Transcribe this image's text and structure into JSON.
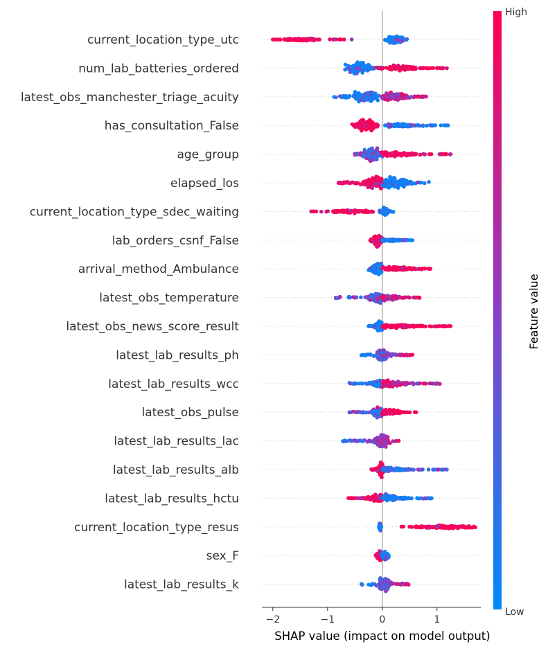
{
  "chart_data": {
    "type": "scatter",
    "subtype": "shap-beeswarm",
    "title": "",
    "xlabel": "SHAP value (impact on model output)",
    "xlim": [
      -2.2,
      1.8
    ],
    "xticks": [
      {
        "v": -2,
        "label": "−2"
      },
      {
        "v": -1,
        "label": "−1"
      },
      {
        "v": 0,
        "label": "0"
      },
      {
        "v": 1,
        "label": "1"
      }
    ],
    "grid": false,
    "colorbar": {
      "title": "Feature value",
      "high_label": "High",
      "low_label": "Low",
      "low_color": "#008bfb",
      "mid_color": "#8a3fc6",
      "high_color": "#ff0051"
    },
    "features": [
      {
        "name": "current_location_type_utc",
        "groups": [
          {
            "min": -2.0,
            "max": -0.56,
            "core": [
              -1.75,
              -1.25
            ],
            "peak": -1.45,
            "width": 0.2,
            "color": "high",
            "n": 110
          },
          {
            "min": 0.05,
            "max": 0.45,
            "core": [
              0.12,
              0.35
            ],
            "peak": 0.22,
            "width": 0.55,
            "color": "low",
            "n": 130
          }
        ]
      },
      {
        "name": "num_lab_batteries_ordered",
        "groups": [
          {
            "min": -0.68,
            "max": 0.0,
            "core": [
              -0.6,
              -0.2
            ],
            "peak": -0.48,
            "width": 0.75,
            "color": "low",
            "n": 110
          },
          {
            "min": -0.1,
            "max": 1.18,
            "core": [
              0.1,
              0.6
            ],
            "peak": 0.3,
            "width": 0.35,
            "color": "high",
            "n": 130
          }
        ]
      },
      {
        "name": "latest_obs_manchester_triage_acuity",
        "groups": [
          {
            "min": -0.88,
            "max": 0.05,
            "core": [
              -0.5,
              -0.1
            ],
            "peak": -0.3,
            "width": 0.85,
            "color": "low",
            "n": 130
          },
          {
            "min": 0.0,
            "max": 0.8,
            "core": [
              0.05,
              0.45
            ],
            "peak": 0.2,
            "width": 0.5,
            "color": "mixhigh",
            "n": 120
          }
        ]
      },
      {
        "name": "has_consultation_False",
        "groups": [
          {
            "min": -0.55,
            "max": -0.08,
            "core": [
              -0.45,
              -0.15
            ],
            "peak": -0.28,
            "width": 0.65,
            "color": "high",
            "n": 110
          },
          {
            "min": 0.05,
            "max": 1.2,
            "core": [
              0.1,
              0.6
            ],
            "peak": 0.25,
            "width": 0.25,
            "color": "low",
            "n": 110
          }
        ]
      },
      {
        "name": "age_group",
        "groups": [
          {
            "min": -0.5,
            "max": 0.0,
            "core": [
              -0.35,
              -0.08
            ],
            "peak": -0.17,
            "width": 0.9,
            "color": "mixlow",
            "n": 120
          },
          {
            "min": 0.0,
            "max": 1.25,
            "core": [
              0.0,
              0.6
            ],
            "peak": 0.1,
            "width": 0.3,
            "color": "high",
            "n": 130
          }
        ]
      },
      {
        "name": "elapsed_los",
        "groups": [
          {
            "min": -0.8,
            "max": 0.05,
            "core": [
              -0.35,
              0.0
            ],
            "peak": -0.05,
            "width": 0.85,
            "color": "high",
            "n": 130
          },
          {
            "min": 0.0,
            "max": 0.85,
            "core": [
              0.05,
              0.45
            ],
            "peak": 0.2,
            "width": 0.7,
            "color": "low",
            "n": 120
          }
        ]
      },
      {
        "name": "current_location_type_sdec_waiting",
        "groups": [
          {
            "min": -1.3,
            "max": -0.17,
            "core": [
              -0.9,
              -0.25
            ],
            "peak": -0.5,
            "width": 0.18,
            "color": "high",
            "n": 110
          },
          {
            "min": -0.05,
            "max": 0.2,
            "core": [
              0.0,
              0.1
            ],
            "peak": 0.03,
            "width": 0.55,
            "color": "low",
            "n": 80
          }
        ]
      },
      {
        "name": "lab_orders_csnf_False",
        "groups": [
          {
            "min": -0.22,
            "max": 0.0,
            "core": [
              -0.15,
              -0.02
            ],
            "peak": -0.08,
            "width": 0.75,
            "color": "high",
            "n": 90
          },
          {
            "min": 0.0,
            "max": 0.55,
            "core": [
              0.0,
              0.35
            ],
            "peak": 0.05,
            "width": 0.2,
            "color": "low",
            "n": 90
          }
        ]
      },
      {
        "name": "arrival_method_Ambulance",
        "groups": [
          {
            "min": -0.25,
            "max": 0.0,
            "core": [
              -0.18,
              -0.02
            ],
            "peak": -0.07,
            "width": 0.9,
            "color": "low",
            "n": 100
          },
          {
            "min": 0.0,
            "max": 0.88,
            "core": [
              0.05,
              0.6
            ],
            "peak": 0.1,
            "width": 0.3,
            "color": "high",
            "n": 110
          }
        ]
      },
      {
        "name": "latest_obs_temperature",
        "groups": [
          {
            "min": -0.85,
            "max": 0.05,
            "core": [
              -0.25,
              0.0
            ],
            "peak": -0.05,
            "width": 0.75,
            "color": "mixlow",
            "n": 120
          },
          {
            "min": 0.0,
            "max": 0.68,
            "core": [
              0.0,
              0.3
            ],
            "peak": 0.05,
            "width": 0.35,
            "color": "mixhigh",
            "n": 100
          }
        ]
      },
      {
        "name": "latest_obs_news_score_result",
        "groups": [
          {
            "min": -0.25,
            "max": 0.02,
            "core": [
              -0.1,
              0.0
            ],
            "peak": -0.05,
            "width": 0.75,
            "color": "low",
            "n": 100
          },
          {
            "min": 0.0,
            "max": 1.25,
            "core": [
              0.05,
              0.7
            ],
            "peak": 0.1,
            "width": 0.3,
            "color": "high",
            "n": 120
          }
        ]
      },
      {
        "name": "latest_lab_results_ph",
        "groups": [
          {
            "min": -0.38,
            "max": 0.55,
            "core": [
              -0.1,
              0.1
            ],
            "peak": 0.0,
            "width": 0.7,
            "color": "mix",
            "n": 170
          }
        ]
      },
      {
        "name": "latest_lab_results_wcc",
        "groups": [
          {
            "min": -0.6,
            "max": 0.05,
            "core": [
              -0.2,
              0.0
            ],
            "peak": 0.0,
            "width": 0.55,
            "color": "low",
            "n": 100
          },
          {
            "min": 0.0,
            "max": 1.05,
            "core": [
              0.0,
              0.45
            ],
            "peak": 0.05,
            "width": 0.45,
            "color": "mixhigh",
            "n": 120
          }
        ]
      },
      {
        "name": "latest_obs_pulse",
        "groups": [
          {
            "min": -0.6,
            "max": 0.05,
            "core": [
              -0.2,
              0.0
            ],
            "peak": -0.05,
            "width": 0.6,
            "color": "mixlow",
            "n": 100
          },
          {
            "min": 0.0,
            "max": 0.62,
            "core": [
              0.0,
              0.35
            ],
            "peak": 0.05,
            "width": 0.35,
            "color": "high",
            "n": 100
          }
        ]
      },
      {
        "name": "latest_lab_results_lac",
        "groups": [
          {
            "min": -0.72,
            "max": 0.3,
            "core": [
              -0.1,
              0.1
            ],
            "peak": -0.02,
            "width": 0.8,
            "color": "mix",
            "n": 170
          }
        ]
      },
      {
        "name": "latest_lab_results_alb",
        "groups": [
          {
            "min": -0.2,
            "max": 0.05,
            "core": [
              -0.05,
              0.02
            ],
            "peak": -0.02,
            "width": 0.9,
            "color": "high",
            "n": 90
          },
          {
            "min": 0.0,
            "max": 1.18,
            "core": [
              0.0,
              0.5
            ],
            "peak": 0.05,
            "width": 0.25,
            "color": "mixlow",
            "n": 110
          }
        ]
      },
      {
        "name": "latest_lab_results_hctu",
        "groups": [
          {
            "min": -0.62,
            "max": 0.05,
            "core": [
              -0.3,
              0.0
            ],
            "peak": -0.02,
            "width": 0.45,
            "color": "high",
            "n": 100
          },
          {
            "min": 0.0,
            "max": 0.9,
            "core": [
              0.0,
              0.4
            ],
            "peak": 0.02,
            "width": 0.4,
            "color": "low",
            "n": 100
          }
        ]
      },
      {
        "name": "current_location_type_resus",
        "groups": [
          {
            "min": -0.06,
            "max": -0.02,
            "core": [
              -0.05,
              -0.03
            ],
            "peak": -0.04,
            "width": 0.65,
            "color": "low",
            "n": 50
          },
          {
            "min": 0.35,
            "max": 1.7,
            "core": [
              0.6,
              1.6
            ],
            "peak": 1.2,
            "width": 0.2,
            "color": "high",
            "n": 120
          }
        ]
      },
      {
        "name": "sex_F",
        "groups": [
          {
            "min": -0.12,
            "max": 0.0,
            "core": [
              -0.1,
              -0.02
            ],
            "peak": -0.05,
            "width": 0.75,
            "color": "high",
            "n": 70
          },
          {
            "min": 0.0,
            "max": 0.12,
            "core": [
              0.0,
              0.1
            ],
            "peak": 0.05,
            "width": 0.6,
            "color": "low",
            "n": 70
          }
        ]
      },
      {
        "name": "latest_lab_results_k",
        "groups": [
          {
            "min": -0.38,
            "max": 0.48,
            "core": [
              -0.05,
              0.12
            ],
            "peak": 0.02,
            "width": 0.8,
            "color": "mix",
            "n": 160
          }
        ]
      }
    ]
  }
}
